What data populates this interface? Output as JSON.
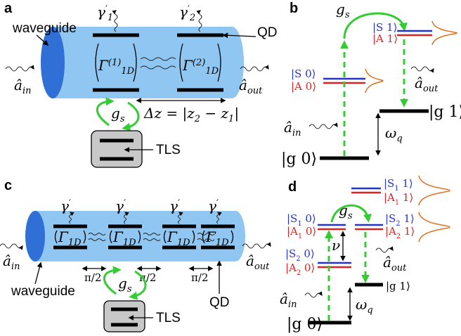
{
  "panels": {
    "a": {
      "letter": "a",
      "waveguide": "waveguide",
      "qd": "QD",
      "tls": "TLS",
      "gamma1": {
        "base": "γ",
        "sup": "′",
        "sub": "1"
      },
      "gamma2": {
        "base": "γ",
        "sup": "′",
        "sub": "2"
      },
      "Gamma1": {
        "base": "Γ",
        "sup": "(1)",
        "sub": "1D"
      },
      "Gamma2": {
        "base": "Γ",
        "sup": "(2)",
        "sub": "1D"
      },
      "ain": {
        "base": "â",
        "sub": "in"
      },
      "aout": {
        "base": "â",
        "sub": "out"
      },
      "gs": {
        "base": "g",
        "sub": "s"
      },
      "dz": {
        "base": "Δz = |z",
        "sub": "2",
        "post": " − z",
        "sub2": "1",
        "post2": "|"
      }
    },
    "b": {
      "letter": "b",
      "gs": {
        "base": "g",
        "sub": "s"
      },
      "S1": "|S 1⟩",
      "A1": "|A 1⟩",
      "S0": "|S 0⟩",
      "A0": "|A 0⟩",
      "g1": "|g 1⟩",
      "g0": "|g 0⟩",
      "ain": {
        "base": "â",
        "sub": "in"
      },
      "aout": {
        "base": "â",
        "sub": "out"
      },
      "omega": {
        "base": "ω",
        "sub": "q"
      }
    },
    "c": {
      "letter": "c",
      "waveguide": "waveguide",
      "qd": "QD",
      "tls": "TLS",
      "gammas": [
        {
          "base": "γ",
          "sup": "′"
        },
        {
          "base": "γ",
          "sup": "′"
        },
        {
          "base": "γ",
          "sup": "′"
        },
        {
          "base": "γ",
          "sup": "′"
        }
      ],
      "Gammas": [
        {
          "base": "Γ",
          "sub": "1D"
        },
        {
          "base": "Γ",
          "sub": "1D"
        },
        {
          "base": "Γ",
          "sub": "1D"
        },
        {
          "base": "Γ",
          "sub": "1D"
        }
      ],
      "phases": [
        "π/2",
        "π/2",
        "π/2"
      ],
      "ain": {
        "base": "â",
        "sub": "in"
      },
      "aout": {
        "base": "â",
        "sub": "out"
      },
      "gs": {
        "base": "g",
        "sub": "s"
      }
    },
    "d": {
      "letter": "d",
      "S11": {
        "base": "|S",
        "sub": "1",
        "post": " 1⟩"
      },
      "A11": {
        "base": "|A",
        "sub": "1",
        "post": " 1⟩"
      },
      "S10": {
        "base": "|S",
        "sub": "1",
        "post": " 0⟩"
      },
      "A10": {
        "base": "|A",
        "sub": "1",
        "post": " 0⟩"
      },
      "S21": {
        "base": "|S",
        "sub": "2",
        "post": " 1⟩"
      },
      "A21": {
        "base": "|A",
        "sub": "2",
        "post": " 1⟩"
      },
      "S20": {
        "base": "|S",
        "sub": "2",
        "post": " 0⟩"
      },
      "A20": {
        "base": "|A",
        "sub": "2",
        "post": " 0⟩"
      },
      "nu": "ν",
      "gs": {
        "base": "g",
        "sub": "s"
      },
      "ain": {
        "base": "â",
        "sub": "in"
      },
      "aout": {
        "base": "â",
        "sub": "out"
      },
      "omega": {
        "base": "ω",
        "sub": "q"
      },
      "g1": "|g 1⟩",
      "g0": "|g 0⟩"
    }
  }
}
